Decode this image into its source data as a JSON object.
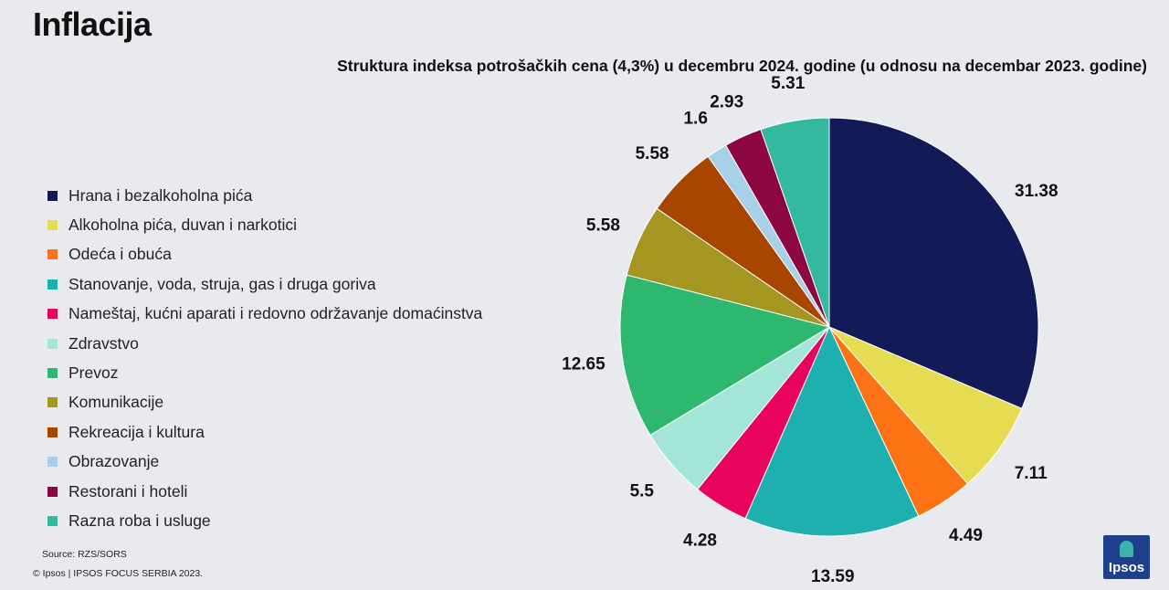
{
  "page_title": "Inflacija",
  "footer": {
    "source": "Source: RZS/SORS",
    "copyright": "© Ipsos | IPSOS FOCUS SERBIA 2023."
  },
  "logo": {
    "text": "Ipsos"
  },
  "chart_data": {
    "type": "pie",
    "title": "Struktura indeksa potrošačkih cena (4,3%) u decembru 2024. godine (u odnosu na decembar 2023. godine)",
    "legend_position": "left",
    "categories": [
      "Hrana i bezalkoholna pića",
      "Alkoholna pića, duvan i narkotici",
      "Odeća i obuća",
      "Stanovanje, voda, struja, gas i druga goriva",
      "Nameštaj, kućni aparati i redovno održavanje domaćinstva",
      "Zdravstvo",
      "Prevoz",
      "Komunikacije",
      "Rekreacija i kultura",
      "Obrazovanje",
      "Restorani i hoteli",
      "Razna roba i usluge"
    ],
    "values": [
      31.38,
      7.11,
      4.49,
      13.59,
      4.28,
      5.5,
      12.65,
      5.58,
      5.58,
      1.6,
      2.93,
      5.31
    ],
    "labels": [
      "31.38",
      "7.11",
      "4.49",
      "13.59",
      "4.28",
      "5.5",
      "12.65",
      "5.58",
      "5.58",
      "1.6",
      "2.93",
      "5.31"
    ],
    "colors": [
      "#131a58",
      "#e6dc52",
      "#fc7315",
      "#1eb0ae",
      "#e8045e",
      "#a3e6d8",
      "#2eb76f",
      "#a39721",
      "#a84600",
      "#a8d0e6",
      "#8c0641",
      "#35b8a0"
    ]
  }
}
